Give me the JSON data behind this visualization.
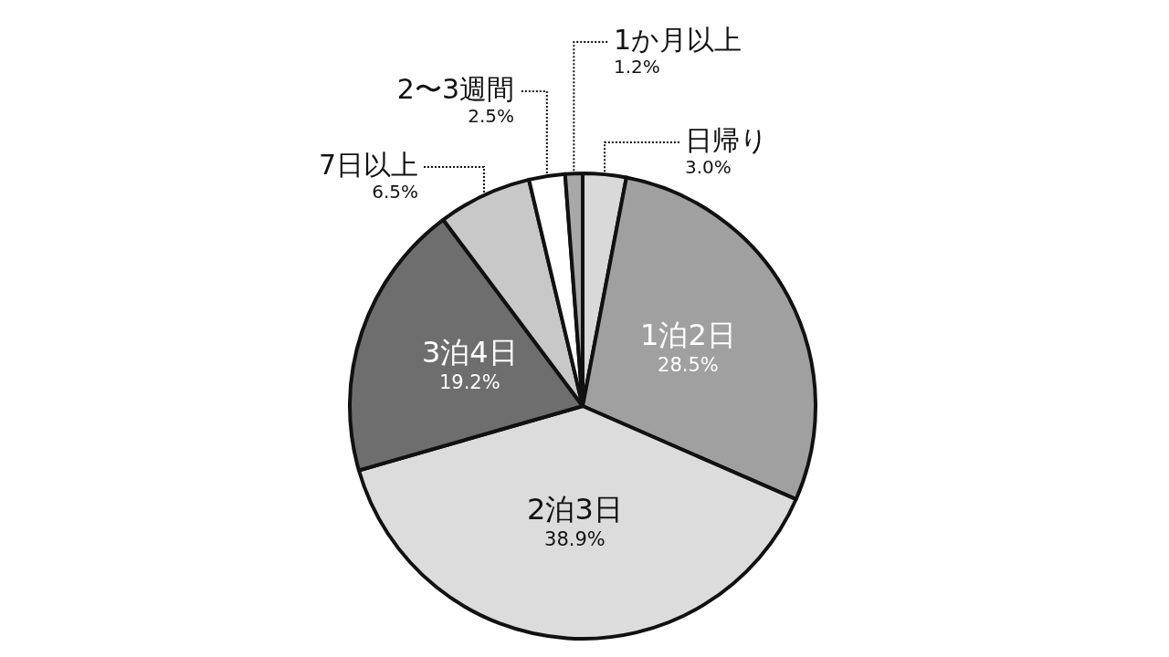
{
  "chart_data": {
    "type": "pie",
    "categories": [
      "日帰り",
      "1泊2日",
      "2泊3日",
      "3泊4日",
      "7日以上",
      "2〜3週間",
      "1か月以上"
    ],
    "values": [
      3.0,
      28.5,
      38.9,
      19.2,
      6.5,
      2.5,
      1.2
    ],
    "value_labels": [
      "3.0%",
      "28.5%",
      "38.9%",
      "19.2%",
      "6.5%",
      "2.5%",
      "1.2%"
    ],
    "colors": [
      "#d9d9d9",
      "#a0a0a0",
      "#dcdcdc",
      "#6e6e6e",
      "#c8c8c8",
      "#ffffff",
      "#a8a8a8"
    ]
  }
}
